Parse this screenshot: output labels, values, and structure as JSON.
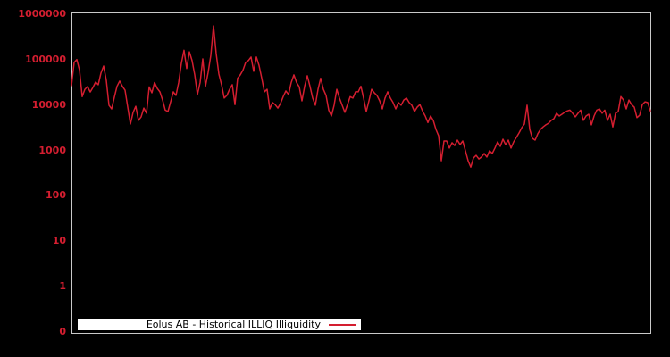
{
  "window": {
    "background": "#000000"
  },
  "axis": {
    "frame_color": "#c9c9c9",
    "tick_label_color": "#d41e30",
    "x_tick_labels": []
  },
  "legend": {
    "position": "bottom-left",
    "background": "#ffffff",
    "text_color": "#000000"
  },
  "chart_data": {
    "type": "line",
    "title": "",
    "xlabel": "",
    "ylabel": "",
    "yscale": "log",
    "ylim": [
      0.1,
      1050000
    ],
    "grid": false,
    "legend_position": "bottom-left",
    "line_color": "#d41e30",
    "yticks": [
      {
        "label": "1000000",
        "exp": 6
      },
      {
        "label": "100000",
        "exp": 5
      },
      {
        "label": "10000",
        "exp": 4
      },
      {
        "label": "1000",
        "exp": 3
      },
      {
        "label": "100",
        "exp": 2
      },
      {
        "label": "10",
        "exp": 1
      },
      {
        "label": "1",
        "exp": 0
      },
      {
        "label": "0",
        "exp": -1
      }
    ],
    "series": [
      {
        "name": "Eolus AB - Historical ILLIQ Illiquidity",
        "values": [
          25800,
          83500,
          97000,
          57000,
          14800,
          21500,
          24700,
          18700,
          23600,
          31000,
          27100,
          48800,
          69700,
          33900,
          9600,
          8000,
          14400,
          25000,
          32500,
          25000,
          20500,
          8700,
          3700,
          6700,
          9100,
          4450,
          5350,
          8300,
          6400,
          24200,
          18000,
          30200,
          22500,
          18900,
          12500,
          7500,
          6960,
          11400,
          18900,
          15800,
          30200,
          80000,
          155000,
          61500,
          143000,
          92000,
          44500,
          16500,
          30200,
          100000,
          25000,
          50500,
          120000,
          530000,
          131000,
          46500,
          27100,
          13800,
          15800,
          21500,
          27100,
          9900,
          37500,
          44500,
          57000,
          83500,
          92000,
          110000,
          53300,
          110000,
          71800,
          37500,
          18900,
          21500,
          8000,
          11000,
          9900,
          8300,
          10500,
          14800,
          19800,
          16500,
          30200,
          44500,
          30200,
          24200,
          12000,
          25000,
          42700,
          25000,
          13800,
          9600,
          21500,
          37500,
          21500,
          15800,
          7500,
          5570,
          9600,
          21500,
          13800,
          9600,
          6700,
          9900,
          14800,
          13800,
          18900,
          18900,
          25000,
          13800,
          6960,
          12000,
          21500,
          18000,
          15800,
          12000,
          8000,
          13800,
          18900,
          13800,
          11000,
          8000,
          11000,
          9600,
          12500,
          13800,
          11000,
          9600,
          6960,
          8700,
          9900,
          7200,
          5570,
          4000,
          5570,
          4450,
          2830,
          2040,
          580,
          1570,
          1570,
          1100,
          1440,
          1250,
          1640,
          1310,
          1570,
          960,
          580,
          420,
          665,
          760,
          635,
          700,
          835,
          700,
          960,
          835,
          1100,
          1500,
          1200,
          1720,
          1310,
          1640,
          1100,
          1500,
          1880,
          2360,
          3070,
          3700,
          9600,
          2830,
          1800,
          1640,
          2260,
          2830,
          3200,
          3550,
          3850,
          4450,
          4850,
          6400,
          5570,
          6100,
          6700,
          7200,
          7500,
          6400,
          5350,
          6400,
          7500,
          4450,
          5570,
          6100,
          3550,
          5570,
          7500,
          8000,
          6400,
          7500,
          4450,
          6100,
          3200,
          6400,
          6960,
          14800,
          12500,
          8000,
          12500,
          9900,
          8700,
          5130,
          5800,
          9900,
          11400,
          11000,
          7200
        ]
      }
    ]
  }
}
